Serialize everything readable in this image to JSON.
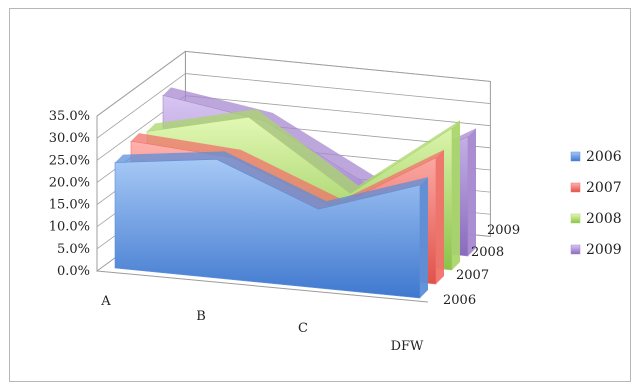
{
  "chart_data": {
    "type": "area",
    "categories": [
      "A",
      "B",
      "C",
      "DFW"
    ],
    "series": [
      {
        "name": "2006",
        "values": [
          0.238,
          0.268,
          0.178,
          0.255
        ],
        "color": "#5b8fd9"
      },
      {
        "name": "2007",
        "values": [
          0.255,
          0.24,
          0.15,
          0.285
        ],
        "color": "#f0716b"
      },
      {
        "name": "2008",
        "values": [
          0.245,
          0.3,
          0.15,
          0.32
        ],
        "color": "#a9d66a"
      },
      {
        "name": "2009",
        "values": [
          0.295,
          0.26,
          0.14,
          0.27
        ],
        "color": "#a688cf"
      }
    ],
    "depth_labels": [
      "2006",
      "2007",
      "2008",
      "2009"
    ],
    "y_ticks": [
      "0.0%",
      "5.0%",
      "10.0%",
      "15.0%",
      "20.0%",
      "25.0%",
      "30.0%",
      "35.0%"
    ],
    "ylim": [
      0,
      0.35
    ],
    "grid": true,
    "legend_position": "right"
  }
}
